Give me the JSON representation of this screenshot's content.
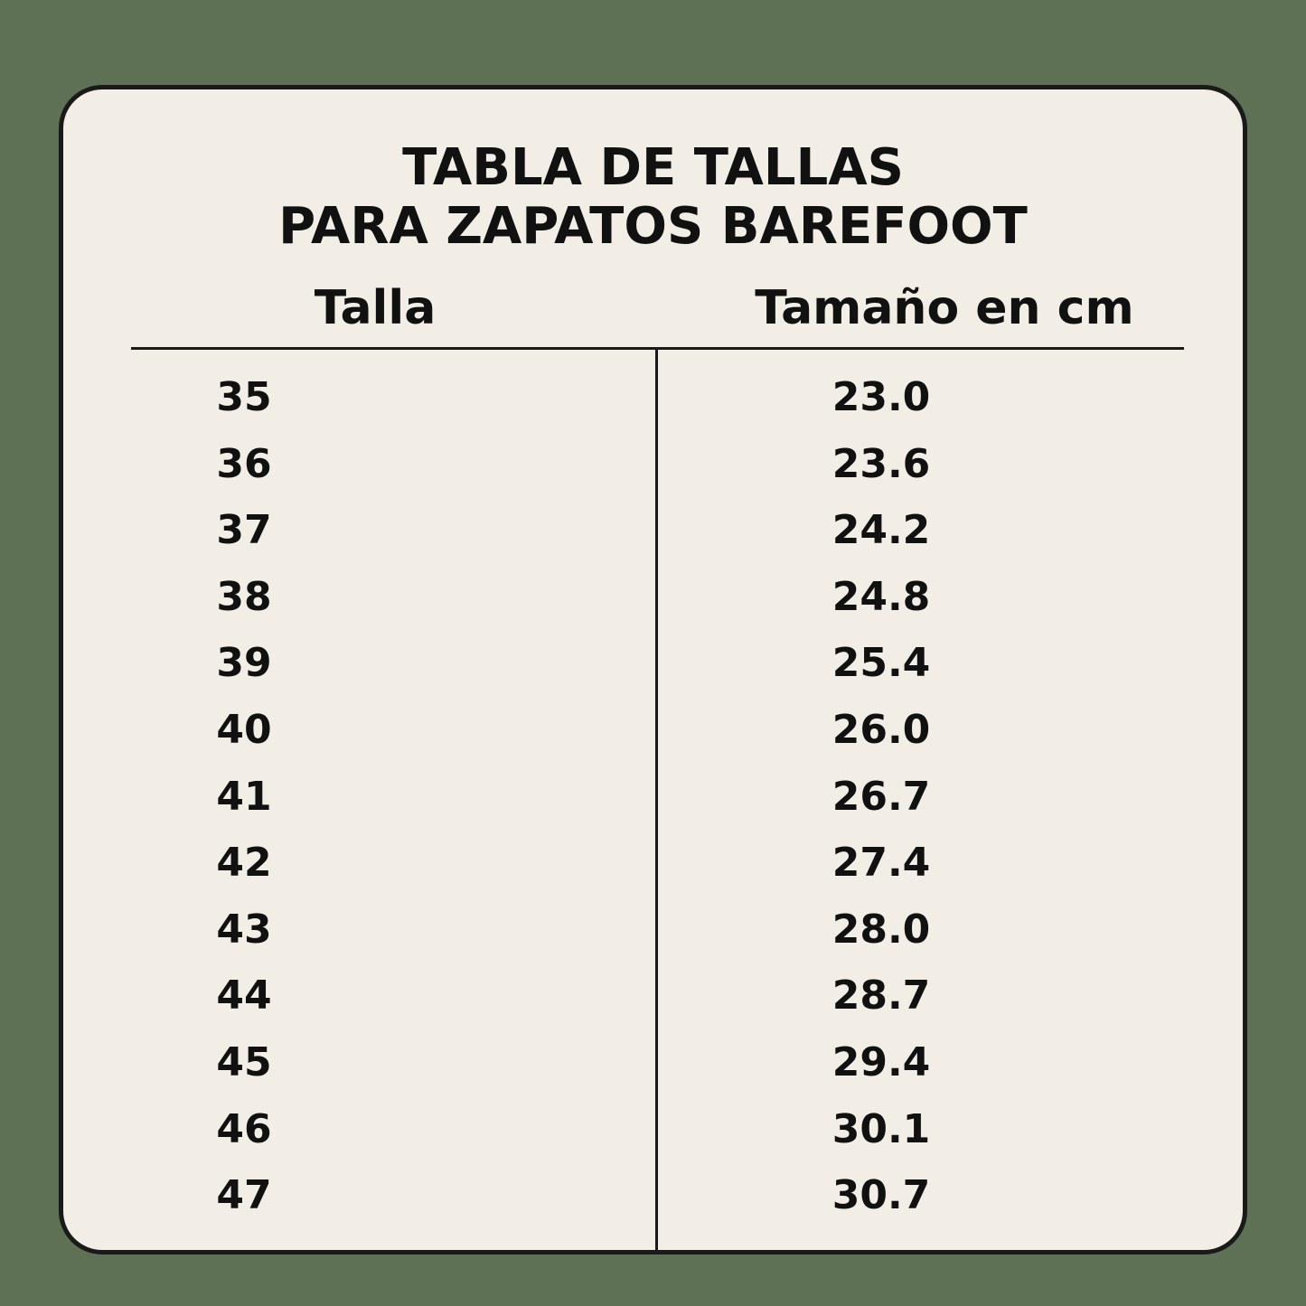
{
  "title_line1": "TABLA DE TALLAS",
  "title_line2": "PARA ZAPATOS BAREFOOT",
  "columns": [
    "Talla",
    "Tamaño en cm"
  ],
  "rows": [
    [
      "35",
      "23.0"
    ],
    [
      "36",
      "23.6"
    ],
    [
      "37",
      "24.2"
    ],
    [
      "38",
      "24.8"
    ],
    [
      "39",
      "25.4"
    ],
    [
      "40",
      "26.0"
    ],
    [
      "41",
      "26.7"
    ],
    [
      "42",
      "27.4"
    ],
    [
      "43",
      "28.0"
    ],
    [
      "44",
      "28.7"
    ],
    [
      "45",
      "29.4"
    ],
    [
      "46",
      "30.1"
    ],
    [
      "47",
      "30.7"
    ]
  ],
  "colors": {
    "background": "#5f7155",
    "card": "#f2ede5",
    "text": "#111111"
  }
}
